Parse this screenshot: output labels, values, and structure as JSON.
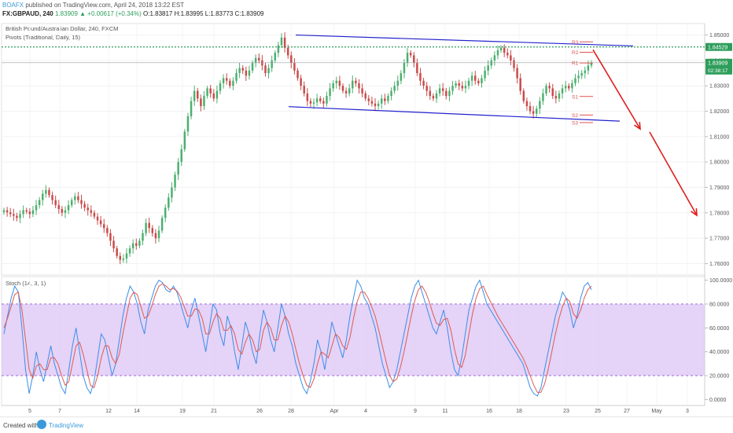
{
  "header": {
    "brand": "BOAFX",
    "published": " published on TradingView.com, April 24, 2018 13:22 EST",
    "symbol": "FX:GBPAUD, 240",
    "change": "1.83909 ▲ +0.00617 (+0.34%)",
    "ohlc": "O:1.83817 H:1.83995 L:1.83773 C:1.83909"
  },
  "legend": {
    "instrument": "British Pound/Australian Dollar, 240, FXCM",
    "pivots": "Pivots (Traditional, Daily, 15)",
    "stoch": "Stoch (14, 3, 1)"
  },
  "footer": {
    "created": "Created with",
    "brand": "TradingView"
  },
  "colors": {
    "up": "#4caf6e",
    "down": "#c94a4a",
    "channel": "#2222cc",
    "arrow": "#e01e1e",
    "level_green": "#2e9e5b",
    "pivot": "#e05050",
    "stoch_k": "#3b8ee8",
    "stoch_d": "#e05a50",
    "stoch_band": "#dcc4f5"
  },
  "chart_data": [
    {
      "type": "candlestick",
      "price_axis": {
        "ticks": [
          "1.85000",
          "1.84000",
          "1.83000",
          "1.82000",
          "1.81000",
          "1.80000",
          "1.79000",
          "1.78000",
          "1.77000",
          "1.76000"
        ],
        "ylim": [
          1.7555,
          1.8545
        ]
      },
      "x_axis": {
        "ticks": [
          "5",
          "7",
          "12",
          "14",
          "19",
          "21",
          "26",
          "28",
          "Apr",
          "4",
          "9",
          "11",
          "16",
          "18",
          "23",
          "25",
          "27",
          "May",
          "3"
        ]
      },
      "price_labels": {
        "level": "1.84529",
        "last": "1.83909",
        "countdown": "02:38:17"
      },
      "pivot_labels": [
        "R3",
        "R2",
        "R1",
        "S1",
        "S2",
        "S3"
      ],
      "pivot_levels": {
        "R3": 1.8473,
        "R2": 1.8432,
        "R1": 1.839,
        "S1": 1.8258,
        "S2": 1.8185,
        "S3": 1.8155
      },
      "key_level": 1.84529,
      "last_price": 1.83909,
      "channel": {
        "upper": [
          1.85,
          1.8457
        ],
        "lower": [
          1.8218,
          1.8161
        ]
      },
      "candles_series": [
        1.781,
        1.7802,
        1.7795,
        1.7788,
        1.778,
        1.7795,
        1.781,
        1.7805,
        1.7795,
        1.781,
        1.783,
        1.785,
        1.7875,
        1.789,
        1.787,
        1.785,
        1.783,
        1.7815,
        1.78,
        1.781,
        1.783,
        1.785,
        1.7865,
        1.785,
        1.7835,
        1.782,
        1.781,
        1.78,
        1.7785,
        1.777,
        1.7755,
        1.774,
        1.772,
        1.769,
        1.766,
        1.763,
        1.7615,
        1.762,
        1.764,
        1.766,
        1.768,
        1.767,
        1.769,
        1.772,
        1.776,
        1.774,
        1.772,
        1.77,
        1.773,
        1.778,
        1.782,
        1.786,
        1.79,
        1.795,
        1.8,
        1.805,
        1.812,
        1.818,
        1.824,
        1.828,
        1.825,
        1.822,
        1.826,
        1.829,
        1.827,
        1.825,
        1.828,
        1.831,
        1.833,
        1.832,
        1.83,
        1.832,
        1.835,
        1.837,
        1.836,
        1.834,
        1.836,
        1.839,
        1.841,
        1.84,
        1.838,
        1.835,
        1.837,
        1.84,
        1.843,
        1.846,
        1.849,
        1.845,
        1.842,
        1.839,
        1.836,
        1.833,
        1.83,
        1.827,
        1.824,
        1.823,
        1.8235,
        1.825,
        1.824,
        1.823,
        1.826,
        1.829,
        1.831,
        1.832,
        1.83,
        1.828,
        1.827,
        1.829,
        1.832,
        1.831,
        1.829,
        1.827,
        1.825,
        1.824,
        1.823,
        1.822,
        1.823,
        1.825,
        1.824,
        1.826,
        1.828,
        1.83,
        1.832,
        1.835,
        1.839,
        1.843,
        1.842,
        1.839,
        1.835,
        1.832,
        1.83,
        1.828,
        1.826,
        1.825,
        1.827,
        1.829,
        1.828,
        1.826,
        1.828,
        1.83,
        1.831,
        1.83,
        1.829,
        1.83,
        1.832,
        1.834,
        1.832,
        1.831,
        1.833,
        1.836,
        1.838,
        1.84,
        1.842,
        1.844,
        1.845,
        1.843,
        1.842,
        1.84,
        1.837,
        1.833,
        1.828,
        1.824,
        1.822,
        1.82,
        1.819,
        1.821,
        1.824,
        1.827,
        1.83,
        1.829,
        1.826,
        1.825,
        1.827,
        1.829,
        1.83,
        1.829,
        1.831,
        1.833,
        1.834,
        1.835,
        1.836,
        1.838,
        1.8391
      ],
      "projection_arrows": [
        {
          "from": [
            "Apr 24",
            1.844
          ],
          "to": [
            "Apr 26",
            1.813
          ]
        },
        {
          "from": [
            "Apr 27",
            1.812
          ],
          "to": [
            "May 3",
            1.779
          ]
        }
      ]
    },
    {
      "type": "line",
      "name": "stoch",
      "y_axis": {
        "ticks": [
          "100.0000",
          "80.0000",
          "60.0000",
          "40.0000",
          "20.0000",
          "0.0000"
        ],
        "ylim": [
          -5,
          103
        ],
        "band": [
          20,
          80
        ]
      },
      "series_k": [
        55,
        70,
        85,
        95,
        90,
        60,
        25,
        5,
        20,
        40,
        25,
        15,
        30,
        45,
        30,
        20,
        10,
        5,
        25,
        45,
        60,
        40,
        20,
        10,
        5,
        15,
        35,
        55,
        50,
        35,
        20,
        30,
        50,
        70,
        85,
        95,
        90,
        80,
        65,
        55,
        75,
        85,
        95,
        100,
        98,
        92,
        90,
        95,
        90,
        80,
        70,
        60,
        75,
        85,
        70,
        55,
        40,
        60,
        80,
        75,
        55,
        45,
        70,
        60,
        40,
        25,
        45,
        65,
        55,
        40,
        30,
        55,
        75,
        65,
        50,
        40,
        60,
        80,
        70,
        55,
        45,
        30,
        20,
        10,
        5,
        15,
        30,
        50,
        40,
        25,
        45,
        65,
        55,
        45,
        35,
        50,
        70,
        85,
        100,
        95,
        85,
        80,
        70,
        60,
        45,
        30,
        20,
        10,
        15,
        25,
        40,
        55,
        70,
        85,
        95,
        100,
        90,
        80,
        70,
        60,
        55,
        65,
        75,
        60,
        40,
        25,
        20,
        35,
        55,
        75,
        85,
        95,
        100,
        90,
        80,
        75,
        70,
        65,
        60,
        55,
        50,
        45,
        40,
        35,
        30,
        20,
        10,
        5,
        3,
        10,
        25,
        40,
        55,
        70,
        80,
        90,
        85,
        75,
        60,
        70,
        85,
        95,
        98,
        92
      ],
      "series_d": [
        60,
        68,
        78,
        88,
        90,
        75,
        50,
        25,
        18,
        28,
        30,
        25,
        25,
        35,
        35,
        30,
        20,
        12,
        15,
        30,
        45,
        48,
        38,
        25,
        12,
        10,
        20,
        35,
        45,
        45,
        35,
        30,
        38,
        55,
        70,
        85,
        90,
        88,
        78,
        68,
        70,
        78,
        88,
        95,
        97,
        95,
        92,
        93,
        91,
        86,
        78,
        70,
        70,
        76,
        75,
        68,
        55,
        55,
        65,
        72,
        68,
        58,
        58,
        62,
        55,
        42,
        38,
        48,
        55,
        50,
        40,
        42,
        58,
        65,
        60,
        50,
        50,
        62,
        70,
        65,
        55,
        42,
        30,
        20,
        12,
        10,
        17,
        30,
        40,
        38,
        35,
        45,
        55,
        52,
        45,
        42,
        52,
        68,
        82,
        90,
        90,
        85,
        78,
        70,
        58,
        45,
        32,
        20,
        15,
        17,
        27,
        40,
        55,
        70,
        83,
        92,
        95,
        90,
        82,
        72,
        64,
        62,
        67,
        68,
        58,
        42,
        30,
        27,
        37,
        55,
        72,
        85,
        93,
        95,
        88,
        82,
        76,
        70,
        65,
        60,
        55,
        50,
        45,
        40,
        35,
        28,
        20,
        12,
        6,
        6,
        13,
        25,
        40,
        55,
        68,
        78,
        85,
        82,
        72,
        68,
        75,
        85,
        92,
        95
      ]
    }
  ]
}
